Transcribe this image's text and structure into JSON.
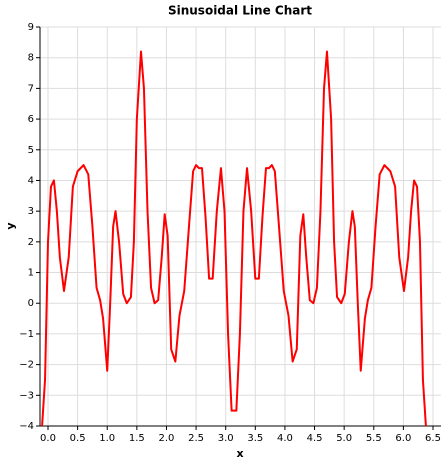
{
  "chart_data": {
    "type": "line",
    "title": "Sinusoidal Line Chart",
    "x_label": "x",
    "y_label": "y",
    "x": [
      -0.1,
      -0.05,
      0.0,
      0.05,
      0.1,
      0.15,
      0.2,
      0.27,
      0.35,
      0.42,
      0.5,
      0.6,
      0.68,
      0.75,
      0.82,
      0.88,
      0.93,
      1.0,
      1.05,
      1.1,
      1.14,
      1.2,
      1.27,
      1.33,
      1.4,
      1.45,
      1.5,
      1.57,
      1.62,
      1.68,
      1.74,
      1.8,
      1.86,
      1.92,
      1.97,
      2.02,
      2.08,
      2.15,
      2.22,
      2.3,
      2.38,
      2.45,
      2.5,
      2.55,
      2.6,
      2.66,
      2.72,
      2.78,
      2.85,
      2.92,
      2.98,
      3.04,
      3.1,
      3.14,
      3.18,
      3.24,
      3.3,
      3.36,
      3.43,
      3.5,
      3.56,
      3.62,
      3.68,
      3.73,
      3.78,
      3.83,
      3.9,
      3.98,
      4.06,
      4.13,
      4.2,
      4.26,
      4.31,
      4.36,
      4.42,
      4.48,
      4.54,
      4.6,
      4.66,
      4.71,
      4.78,
      4.83,
      4.88,
      4.95,
      5.01,
      5.08,
      5.14,
      5.18,
      5.23,
      5.28,
      5.35,
      5.4,
      5.46,
      5.53,
      5.6,
      5.68,
      5.78,
      5.86,
      5.93,
      6.01,
      6.08,
      6.13,
      6.18,
      6.23,
      6.28,
      6.33,
      6.38
    ],
    "values": [
      -4.0,
      -2.5,
      2.0,
      3.8,
      4.0,
      3.0,
      1.5,
      0.4,
      1.5,
      3.8,
      4.3,
      4.5,
      4.2,
      2.5,
      0.5,
      0.1,
      -0.5,
      -2.2,
      0.0,
      2.5,
      3.0,
      2.0,
      0.3,
      0.0,
      0.2,
      2.0,
      6.0,
      8.2,
      7.0,
      3.0,
      0.5,
      0.0,
      0.1,
      1.5,
      2.9,
      2.2,
      -1.5,
      -1.9,
      -0.4,
      0.4,
      2.5,
      4.3,
      4.5,
      4.4,
      4.4,
      2.8,
      0.8,
      0.8,
      3.0,
      4.4,
      3.0,
      -1.0,
      -3.5,
      -3.5,
      -3.5,
      -1.0,
      3.0,
      4.4,
      3.0,
      0.8,
      0.8,
      2.8,
      4.4,
      4.4,
      4.5,
      4.3,
      2.5,
      0.4,
      -0.4,
      -1.9,
      -1.5,
      2.2,
      2.9,
      1.5,
      0.1,
      0.0,
      0.5,
      3.0,
      7.0,
      8.2,
      6.0,
      2.0,
      0.2,
      0.0,
      0.3,
      2.0,
      3.0,
      2.5,
      0.0,
      -2.2,
      -0.5,
      0.1,
      0.5,
      2.5,
      4.2,
      4.5,
      4.3,
      3.8,
      1.5,
      0.4,
      1.5,
      3.0,
      4.0,
      3.8,
      2.0,
      -2.5,
      -4.0
    ],
    "color": "#ff0000",
    "xlim": [
      -0.135,
      6.635
    ],
    "ylim": [
      -4,
      9
    ],
    "xticks": [
      {
        "value": 0,
        "label": "0.0"
      },
      0.5,
      {
        "value": 1,
        "label": "1.0"
      },
      1.5,
      {
        "value": 2,
        "label": "2.0"
      },
      2.5,
      {
        "value": 3,
        "label": "3.0"
      },
      3.5,
      {
        "value": 4,
        "label": "4.0"
      },
      4.5,
      {
        "value": 5,
        "label": "5.0"
      },
      5.5,
      {
        "value": 6,
        "label": "6.0"
      },
      6.5
    ],
    "yticks": [
      {
        "value": -4,
        "label": "−4"
      },
      {
        "value": -3,
        "label": "−3"
      },
      {
        "value": -2,
        "label": "−2"
      },
      {
        "value": -1,
        "label": "−1"
      },
      0,
      1,
      2,
      3,
      4,
      5,
      6,
      7,
      8,
      9
    ],
    "grid": true
  }
}
